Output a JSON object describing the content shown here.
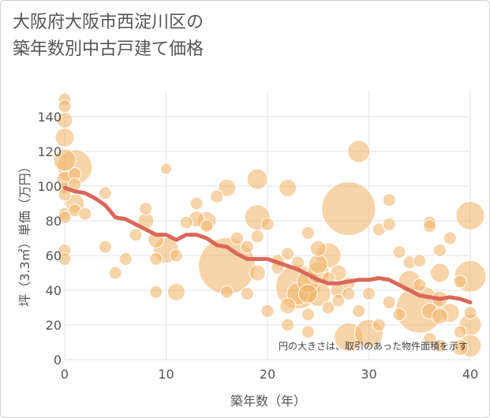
{
  "chart_data": {
    "type": "scatter",
    "title_lines": [
      "大阪府大阪市西淀川区の",
      "築年数別中古戸建て価格"
    ],
    "xlabel": "築年数（年）",
    "ylabel": "坪（3.3㎡）単価（万円）",
    "xlim": [
      0,
      40
    ],
    "ylim": [
      0,
      155
    ],
    "xticks": [
      0,
      10,
      20,
      30,
      40
    ],
    "yticks": [
      0,
      20,
      40,
      60,
      80,
      100,
      120,
      140
    ],
    "grid": true,
    "note": "円の大きさは、取引のあった物件面積を示す",
    "colors": {
      "bubble": "#f2b86f",
      "bubble_edge": "#ffffff",
      "trend": "#d9685a",
      "grid": "#dde3ea",
      "text": "#555555"
    },
    "series": [
      {
        "name": "trend",
        "type": "line",
        "x": [
          0,
          1,
          2,
          3,
          4,
          5,
          6,
          7,
          8,
          9,
          10,
          11,
          12,
          13,
          14,
          15,
          16,
          17,
          18,
          19,
          20,
          21,
          22,
          23,
          24,
          25,
          26,
          27,
          28,
          29,
          30,
          31,
          32,
          33,
          34,
          35,
          36,
          37,
          38,
          39,
          40
        ],
        "y": [
          99,
          97,
          96,
          93,
          89,
          82,
          81,
          78,
          75,
          72,
          72,
          69,
          72,
          72,
          70,
          66,
          65,
          61,
          58,
          58,
          58,
          56,
          54,
          52,
          49,
          46,
          44,
          44,
          45,
          46,
          46,
          47,
          46,
          43,
          40,
          37,
          36,
          35,
          36,
          35,
          33
        ]
      },
      {
        "name": "transactions",
        "type": "bubble",
        "points": [
          {
            "x": 0,
            "y": 150,
            "size": 8
          },
          {
            "x": 0,
            "y": 146,
            "size": 8
          },
          {
            "x": 0,
            "y": 138,
            "size": 10
          },
          {
            "x": 0,
            "y": 128,
            "size": 12
          },
          {
            "x": 0,
            "y": 115,
            "size": 14
          },
          {
            "x": 0,
            "y": 104,
            "size": 10
          },
          {
            "x": 0,
            "y": 99,
            "size": 8
          },
          {
            "x": 0,
            "y": 95,
            "size": 8
          },
          {
            "x": 0,
            "y": 84,
            "size": 8
          },
          {
            "x": 0,
            "y": 82,
            "size": 8
          },
          {
            "x": 0,
            "y": 63,
            "size": 8
          },
          {
            "x": 0,
            "y": 58,
            "size": 8
          },
          {
            "x": 1,
            "y": 111,
            "size": 22
          },
          {
            "x": 1,
            "y": 107,
            "size": 8
          },
          {
            "x": 1,
            "y": 101,
            "size": 8
          },
          {
            "x": 1,
            "y": 90,
            "size": 12
          },
          {
            "x": 1,
            "y": 86,
            "size": 8
          },
          {
            "x": 2,
            "y": 84,
            "size": 8
          },
          {
            "x": 4,
            "y": 96,
            "size": 8
          },
          {
            "x": 4,
            "y": 65,
            "size": 8
          },
          {
            "x": 5,
            "y": 50,
            "size": 8
          },
          {
            "x": 6,
            "y": 58,
            "size": 8
          },
          {
            "x": 7,
            "y": 72,
            "size": 8
          },
          {
            "x": 8,
            "y": 87,
            "size": 8
          },
          {
            "x": 8,
            "y": 80,
            "size": 10
          },
          {
            "x": 9,
            "y": 69,
            "size": 10
          },
          {
            "x": 9,
            "y": 58,
            "size": 8
          },
          {
            "x": 9,
            "y": 39,
            "size": 8
          },
          {
            "x": 10,
            "y": 110,
            "size": 7
          },
          {
            "x": 10,
            "y": 63,
            "size": 16
          },
          {
            "x": 11,
            "y": 39,
            "size": 11
          },
          {
            "x": 11,
            "y": 60,
            "size": 8
          },
          {
            "x": 12,
            "y": 79,
            "size": 8
          },
          {
            "x": 13,
            "y": 90,
            "size": 8
          },
          {
            "x": 13,
            "y": 81,
            "size": 10
          },
          {
            "x": 14,
            "y": 80,
            "size": 12
          },
          {
            "x": 14,
            "y": 77,
            "size": 8
          },
          {
            "x": 15,
            "y": 94,
            "size": 8
          },
          {
            "x": 16,
            "y": 99,
            "size": 11
          },
          {
            "x": 16,
            "y": 54,
            "size": 36
          },
          {
            "x": 16,
            "y": 39,
            "size": 8
          },
          {
            "x": 17,
            "y": 70,
            "size": 8
          },
          {
            "x": 18,
            "y": 65,
            "size": 8
          },
          {
            "x": 18,
            "y": 38,
            "size": 8
          },
          {
            "x": 19,
            "y": 104,
            "size": 13
          },
          {
            "x": 19,
            "y": 82,
            "size": 16
          },
          {
            "x": 19,
            "y": 71,
            "size": 8
          },
          {
            "x": 19,
            "y": 50,
            "size": 10
          },
          {
            "x": 20,
            "y": 78,
            "size": 8
          },
          {
            "x": 20,
            "y": 28,
            "size": 8
          },
          {
            "x": 21,
            "y": 57,
            "size": 8
          },
          {
            "x": 21,
            "y": 53,
            "size": 8
          },
          {
            "x": 22,
            "y": 99,
            "size": 11
          },
          {
            "x": 22,
            "y": 61,
            "size": 8
          },
          {
            "x": 22,
            "y": 31,
            "size": 10
          },
          {
            "x": 22,
            "y": 20,
            "size": 8
          },
          {
            "x": 23,
            "y": 42,
            "size": 28
          },
          {
            "x": 23,
            "y": 38,
            "size": 14
          },
          {
            "x": 23,
            "y": 56,
            "size": 8
          },
          {
            "x": 24,
            "y": 73,
            "size": 8
          },
          {
            "x": 24,
            "y": 45,
            "size": 14
          },
          {
            "x": 24,
            "y": 38,
            "size": 12
          },
          {
            "x": 24,
            "y": 26,
            "size": 8
          },
          {
            "x": 24,
            "y": 16,
            "size": 8
          },
          {
            "x": 25,
            "y": 64,
            "size": 10
          },
          {
            "x": 25,
            "y": 55,
            "size": 12
          },
          {
            "x": 25,
            "y": 50,
            "size": 14
          },
          {
            "x": 25,
            "y": 38,
            "size": 16
          },
          {
            "x": 26,
            "y": 60,
            "size": 16
          },
          {
            "x": 26,
            "y": 47,
            "size": 8
          },
          {
            "x": 26,
            "y": 30,
            "size": 8
          },
          {
            "x": 27,
            "y": 50,
            "size": 10
          },
          {
            "x": 27,
            "y": 40,
            "size": 10
          },
          {
            "x": 27,
            "y": 34,
            "size": 8
          },
          {
            "x": 28,
            "y": 87,
            "size": 34
          },
          {
            "x": 28,
            "y": 44,
            "size": 8
          },
          {
            "x": 28,
            "y": 38,
            "size": 8
          },
          {
            "x": 28,
            "y": 13,
            "size": 18
          },
          {
            "x": 29,
            "y": 120,
            "size": 14
          },
          {
            "x": 29,
            "y": 28,
            "size": 8
          },
          {
            "x": 30,
            "y": 38,
            "size": 8
          },
          {
            "x": 30,
            "y": 15,
            "size": 18
          },
          {
            "x": 31,
            "y": 75,
            "size": 8
          },
          {
            "x": 31,
            "y": 20,
            "size": 8
          },
          {
            "x": 32,
            "y": 92,
            "size": 8
          },
          {
            "x": 32,
            "y": 78,
            "size": 8
          },
          {
            "x": 32,
            "y": 33,
            "size": 8
          },
          {
            "x": 33,
            "y": 62,
            "size": 8
          },
          {
            "x": 33,
            "y": 26,
            "size": 8
          },
          {
            "x": 34,
            "y": 56,
            "size": 8
          },
          {
            "x": 34,
            "y": 45,
            "size": 14
          },
          {
            "x": 35,
            "y": 57,
            "size": 8
          },
          {
            "x": 35,
            "y": 43,
            "size": 8
          },
          {
            "x": 35,
            "y": 29,
            "size": 30
          },
          {
            "x": 36,
            "y": 79,
            "size": 8
          },
          {
            "x": 36,
            "y": 77,
            "size": 8
          },
          {
            "x": 36,
            "y": 28,
            "size": 10
          },
          {
            "x": 36,
            "y": 12,
            "size": 8
          },
          {
            "x": 37,
            "y": 63,
            "size": 8
          },
          {
            "x": 37,
            "y": 50,
            "size": 12
          },
          {
            "x": 37,
            "y": 35,
            "size": 10
          },
          {
            "x": 37,
            "y": 25,
            "size": 10
          },
          {
            "x": 37,
            "y": 8,
            "size": 8
          },
          {
            "x": 38,
            "y": 70,
            "size": 8
          },
          {
            "x": 38,
            "y": 27,
            "size": 12
          },
          {
            "x": 39,
            "y": 45,
            "size": 8
          },
          {
            "x": 39,
            "y": 16,
            "size": 8
          },
          {
            "x": 39,
            "y": 7,
            "size": 10
          },
          {
            "x": 40,
            "y": 83,
            "size": 18
          },
          {
            "x": 40,
            "y": 48,
            "size": 20
          },
          {
            "x": 40,
            "y": 27,
            "size": 8
          },
          {
            "x": 40,
            "y": 20,
            "size": 14
          },
          {
            "x": 40,
            "y": 8,
            "size": 14
          }
        ]
      }
    ]
  }
}
